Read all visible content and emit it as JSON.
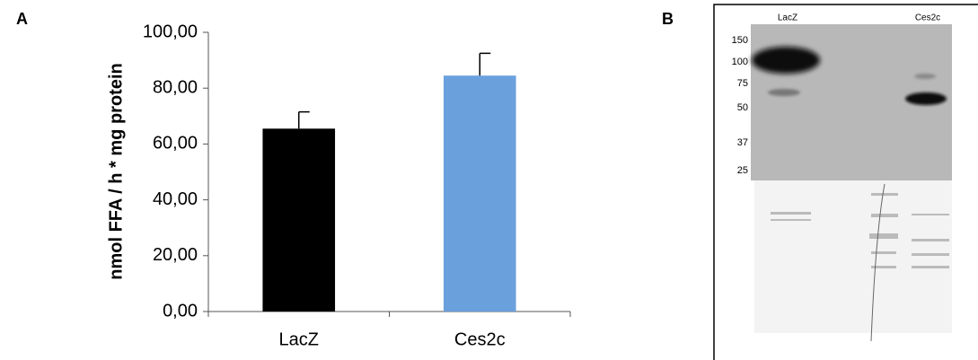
{
  "panels": [
    "A",
    "B"
  ],
  "chart_data": {
    "type": "bar",
    "y_label": "nmol FFA / h * mg protein",
    "categories": [
      "LacZ",
      "Ces2c"
    ],
    "values": [
      65.5,
      84.5
    ],
    "errors": [
      6,
      8
    ],
    "colors": [
      "#000000",
      "#6aa0dc"
    ],
    "ylim": [
      0,
      100
    ],
    "yticks": [
      {
        "value": 0,
        "label": "0,00"
      },
      {
        "value": 20,
        "label": "20,00"
      },
      {
        "value": 40,
        "label": "40,00"
      },
      {
        "value": 60,
        "label": "60,00"
      },
      {
        "value": 80,
        "label": "80,00"
      },
      {
        "value": 100,
        "label": "100,00"
      }
    ]
  },
  "blot": {
    "lanes": [
      "LacZ",
      "Ces2c"
    ],
    "markers": [
      "150",
      "100",
      "75",
      "50",
      "37",
      "25"
    ]
  }
}
